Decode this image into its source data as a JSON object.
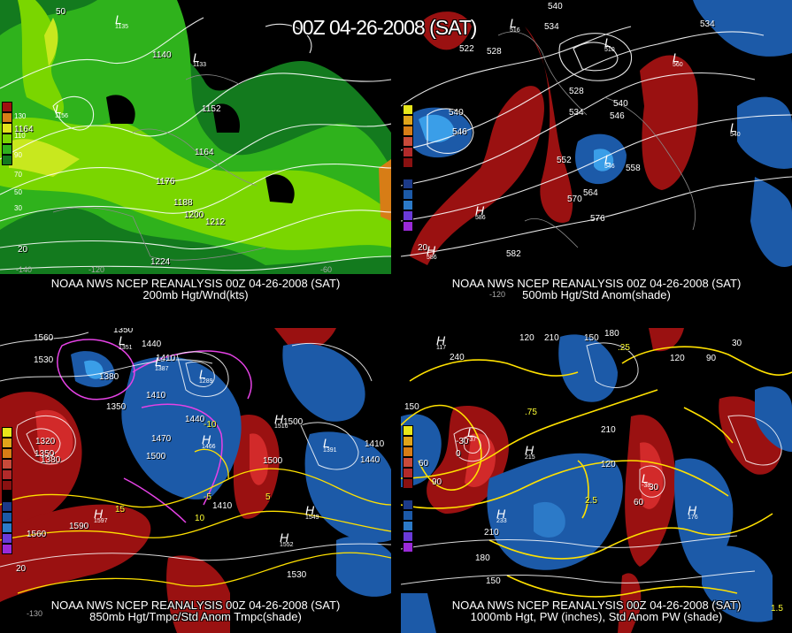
{
  "header": "00Z 04-26-2008 (SAT)",
  "colors": {
    "background": "#000000",
    "wind_light": "#7ad600",
    "wind_mid": "#2fb21c",
    "wind_dark": "#137a1e",
    "wind_yellow": "#c8e81e",
    "anom_pos": "#9a1111",
    "anom_pos_strong": "#d22a2a",
    "anom_neg": "#1c5aa8",
    "anom_neg_strong": "#3a9ee8",
    "contour": "#ffffff",
    "temp_contour": "#ffe100",
    "anom_temp_contour": "#e642e6"
  },
  "panels": [
    {
      "id": "200mb",
      "caption_line1": "NOAA NWS NCEP REANALYSIS 00Z 04-26-2008 (SAT)",
      "caption_line2": "200mb Hgt/Wnd(kts)",
      "scale": [
        "130",
        "110",
        "90",
        "70",
        "50",
        "30"
      ],
      "scale_colors": [
        "#a01010",
        "#d77d16",
        "#e0e41a",
        "#7ad600",
        "#2fb21c",
        "#137a1e"
      ],
      "labels": [
        "1135",
        "1140",
        "1152",
        "1164",
        "1164",
        "1176",
        "1188",
        "1200",
        "1212",
        "1224",
        "20",
        "50"
      ],
      "centers": [
        {
          "letter": "L",
          "value": "1135"
        },
        {
          "letter": "L",
          "value": "1133"
        },
        {
          "letter": "L",
          "value": "1156"
        }
      ]
    },
    {
      "id": "500mb",
      "caption_line1": "NOAA NWS NCEP REANALYSIS 00Z 04-26-2008 (SAT)",
      "caption_line2": "500mb Hgt/Std Anom(shade)",
      "scale": [
        "6",
        "5",
        "4",
        "3",
        "2",
        "1",
        "0",
        "-1",
        "-2",
        "-3",
        "-4",
        "-5"
      ],
      "scale_colors": [
        "#e8e61a",
        "#e0a41a",
        "#d77d16",
        "#c84a3a",
        "#b22a2a",
        "#8a1111",
        "#000000",
        "#1c3a88",
        "#1c5aa8",
        "#2c7ac8",
        "#6a3ad8",
        "#9a2ad8"
      ],
      "labels": [
        "540",
        "534",
        "522",
        "528",
        "534",
        "540",
        "546",
        "540",
        "546",
        "552",
        "564",
        "570",
        "576",
        "582",
        "552",
        "558",
        "528",
        "534",
        "20"
      ],
      "centers": [
        {
          "letter": "L",
          "value": "516"
        },
        {
          "letter": "L",
          "value": "510"
        },
        {
          "letter": "L",
          "value": "560"
        },
        {
          "letter": "L",
          "value": "546"
        },
        {
          "letter": "L",
          "value": "540"
        },
        {
          "letter": "H",
          "value": "586"
        },
        {
          "letter": "H",
          "value": "586"
        }
      ]
    },
    {
      "id": "850mb",
      "caption_line1": "NOAA NWS NCEP REANALYSIS 00Z 04-26-2008 (SAT)",
      "caption_line2": "850mb Hgt/Tmpc/Std Anom Tmpc(shade)",
      "scale": [
        "6",
        "5",
        "4",
        "3",
        "2",
        "1",
        "0",
        "-1",
        "-2",
        "-3",
        "-4",
        "-5"
      ],
      "scale_colors": [
        "#e8e61a",
        "#e0a41a",
        "#d77d16",
        "#c84a3a",
        "#b22a2a",
        "#8a1111",
        "#000000",
        "#1c3a88",
        "#1c5aa8",
        "#2c7ac8",
        "#6a3ad8",
        "#9a2ad8"
      ],
      "labels": [
        "1560",
        "1350",
        "1440",
        "1530",
        "1410",
        "1380",
        "1350",
        "1410",
        "1440",
        "1470",
        "1500",
        "1320",
        "1350",
        "1380",
        "1410",
        "1500",
        "1410",
        "1440",
        "1500",
        "1560",
        "1590",
        "1530",
        "-10",
        "-5",
        "5",
        "10",
        "15",
        "20"
      ],
      "centers": [
        {
          "letter": "L",
          "value": "1351"
        },
        {
          "letter": "L",
          "value": "1387"
        },
        {
          "letter": "L",
          "value": "1289"
        },
        {
          "letter": "L",
          "value": "1391"
        },
        {
          "letter": "H",
          "value": "1466"
        },
        {
          "letter": "H",
          "value": "1516"
        },
        {
          "letter": "H",
          "value": "1597"
        },
        {
          "letter": "H",
          "value": "1549"
        },
        {
          "letter": "H",
          "value": "1552"
        }
      ]
    },
    {
      "id": "1000mb",
      "caption_line1": "NOAA NWS NCEP REANALYSIS 00Z 04-26-2008 (SAT)",
      "caption_line2": "1000mb Hgt, PW (inches), Std Anom PW (shade)",
      "scale": [
        "6",
        "5",
        "4",
        "3",
        "2",
        "1",
        "0",
        "-1",
        "-2",
        "-3",
        "-4",
        "-5"
      ],
      "scale_colors": [
        "#e8e61a",
        "#e0a41a",
        "#d77d16",
        "#c84a3a",
        "#b22a2a",
        "#8a1111",
        "#000000",
        "#1c3a88",
        "#1c5aa8",
        "#2c7ac8",
        "#6a3ad8",
        "#9a2ad8"
      ],
      "labels": [
        "120",
        "180",
        "210",
        "150",
        "240",
        "30",
        "90",
        "120",
        "150",
        "60",
        "-30",
        "0",
        "90",
        "120",
        "210",
        "180",
        "210",
        "150",
        "1.5",
        ".25",
        "2.5",
        ".75",
        "60",
        "30"
      ],
      "centers": [
        {
          "letter": "L",
          "value": "-37"
        },
        {
          "letter": "L",
          "value": "-38"
        },
        {
          "letter": "H",
          "value": "233"
        },
        {
          "letter": "H",
          "value": "215"
        },
        {
          "letter": "H",
          "value": "176"
        },
        {
          "letter": "H",
          "value": "117"
        }
      ]
    }
  ]
}
